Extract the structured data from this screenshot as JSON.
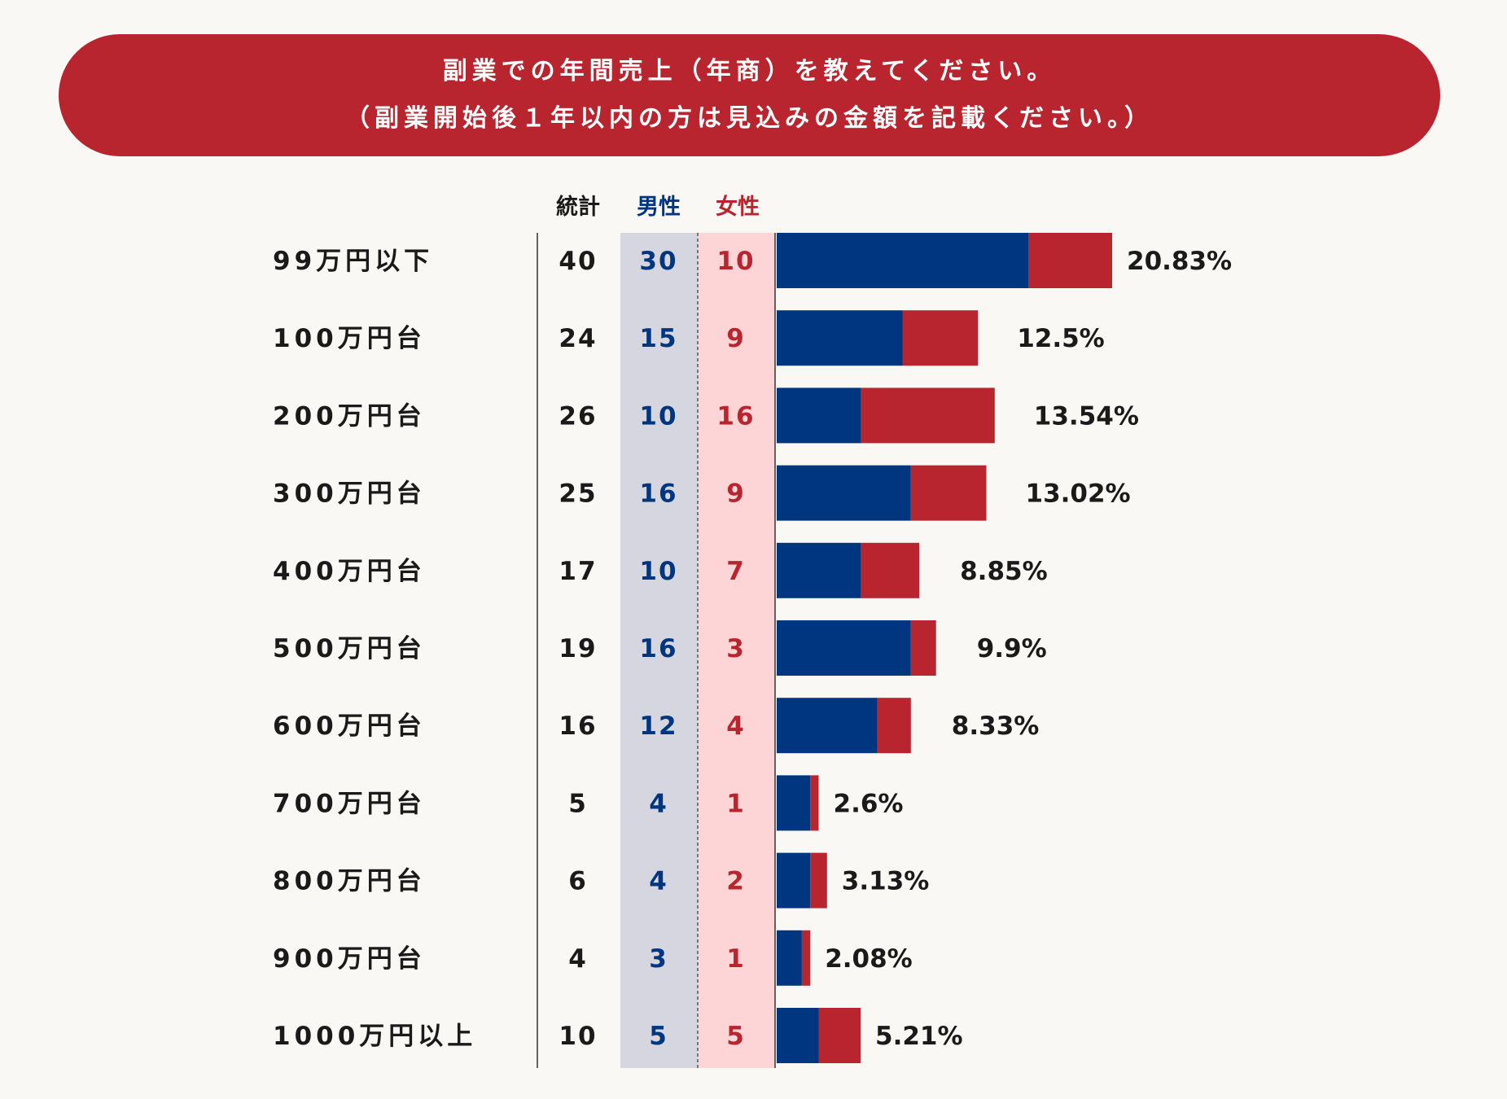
{
  "header": {
    "line1": "副業での年間売上（年商）を教えてください。",
    "line2": "（副業開始後１年以内の方は見込みの金額を記載ください。）"
  },
  "columns": {
    "total": "統計",
    "male": "男性",
    "female": "女性"
  },
  "colors": {
    "banner": "#b9252f",
    "male": "#003580",
    "female": "#b9252f",
    "male_column_bg": "#d5d6e0",
    "female_column_bg": "#fdd5d6"
  },
  "chart_data": {
    "type": "bar",
    "orientation": "horizontal",
    "stacked": true,
    "categories": [
      "99万円以下",
      "100万円台",
      "200万円台",
      "300万円台",
      "400万円台",
      "500万円台",
      "600万円台",
      "700万円台",
      "800万円台",
      "900万円台",
      "1000万円以上"
    ],
    "totals": [
      40,
      24,
      26,
      25,
      17,
      19,
      16,
      5,
      6,
      4,
      10
    ],
    "series": [
      {
        "name": "男性",
        "values": [
          30,
          15,
          10,
          16,
          10,
          16,
          12,
          4,
          4,
          3,
          5
        ]
      },
      {
        "name": "女性",
        "values": [
          10,
          9,
          16,
          9,
          7,
          3,
          4,
          1,
          2,
          1,
          5
        ]
      }
    ],
    "percentages": [
      "20.83%",
      "12.5%",
      "13.54%",
      "13.02%",
      "8.85%",
      "9.9%",
      "8.33%",
      "2.6%",
      "3.13%",
      "2.08%",
      "5.21%"
    ],
    "grid": false,
    "legend": "top"
  }
}
